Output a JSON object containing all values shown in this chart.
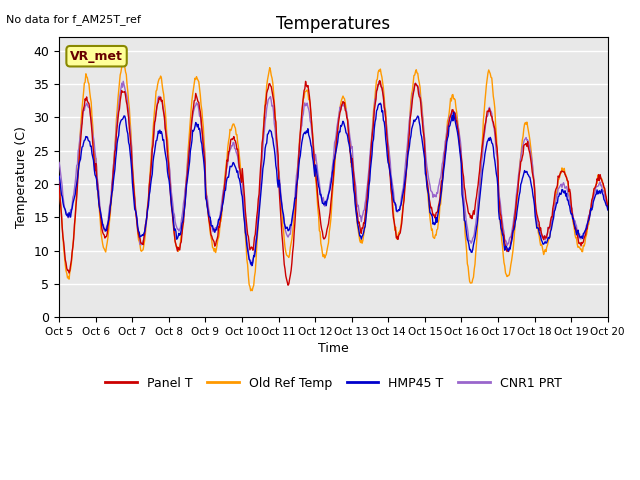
{
  "title": "Temperatures",
  "xlabel": "Time",
  "ylabel": "Temperature (C)",
  "no_data_text": "No data for f_AM25T_ref",
  "vr_met_label": "VR_met",
  "bg_color": "#e8e8e8",
  "x_tick_labels": [
    "Oct 5",
    "Oct 6",
    "Oct 7",
    "Oct 8",
    "Oct 9",
    "Oct 10",
    "Oct 11",
    "Oct 12",
    "Oct 13",
    "Oct 14",
    "Oct 15",
    "Oct 16",
    "Oct 17",
    "Oct 18",
    "Oct 19",
    "Oct 20"
  ],
  "legend_entries": [
    "Panel T",
    "Old Ref Temp",
    "HMP45 T",
    "CNR1 PRT"
  ],
  "line_colors": [
    "#cc0000",
    "#ff9900",
    "#0000cc",
    "#9966cc"
  ],
  "daily_min_panel": [
    7,
    12,
    11,
    10,
    11,
    10,
    5,
    12,
    13,
    12,
    15,
    15,
    10,
    12,
    11
  ],
  "daily_max_panel": [
    33,
    34,
    33,
    33,
    27,
    35,
    35,
    32,
    35,
    35,
    31,
    31,
    26,
    22,
    21
  ],
  "daily_min_old": [
    6,
    10,
    10,
    10,
    10,
    4,
    9,
    9,
    11,
    12,
    12,
    5,
    6,
    10,
    10
  ],
  "daily_max_old": [
    36,
    38,
    36,
    36,
    29,
    37,
    34,
    33,
    37,
    37,
    33,
    37,
    29,
    22,
    21
  ],
  "daily_min_hmp": [
    15,
    13,
    12,
    12,
    13,
    8,
    13,
    17,
    12,
    16,
    14,
    10,
    10,
    11,
    12
  ],
  "daily_max_hmp": [
    27,
    30,
    28,
    29,
    23,
    28,
    28,
    29,
    32,
    30,
    30,
    27,
    22,
    19,
    19
  ],
  "daily_min_cnr": [
    15,
    13,
    11,
    13,
    13,
    8,
    12,
    17,
    15,
    16,
    18,
    11,
    11,
    12,
    12
  ],
  "daily_max_cnr": [
    32,
    35,
    33,
    32,
    26,
    33,
    32,
    32,
    35,
    35,
    31,
    31,
    27,
    20,
    20
  ]
}
